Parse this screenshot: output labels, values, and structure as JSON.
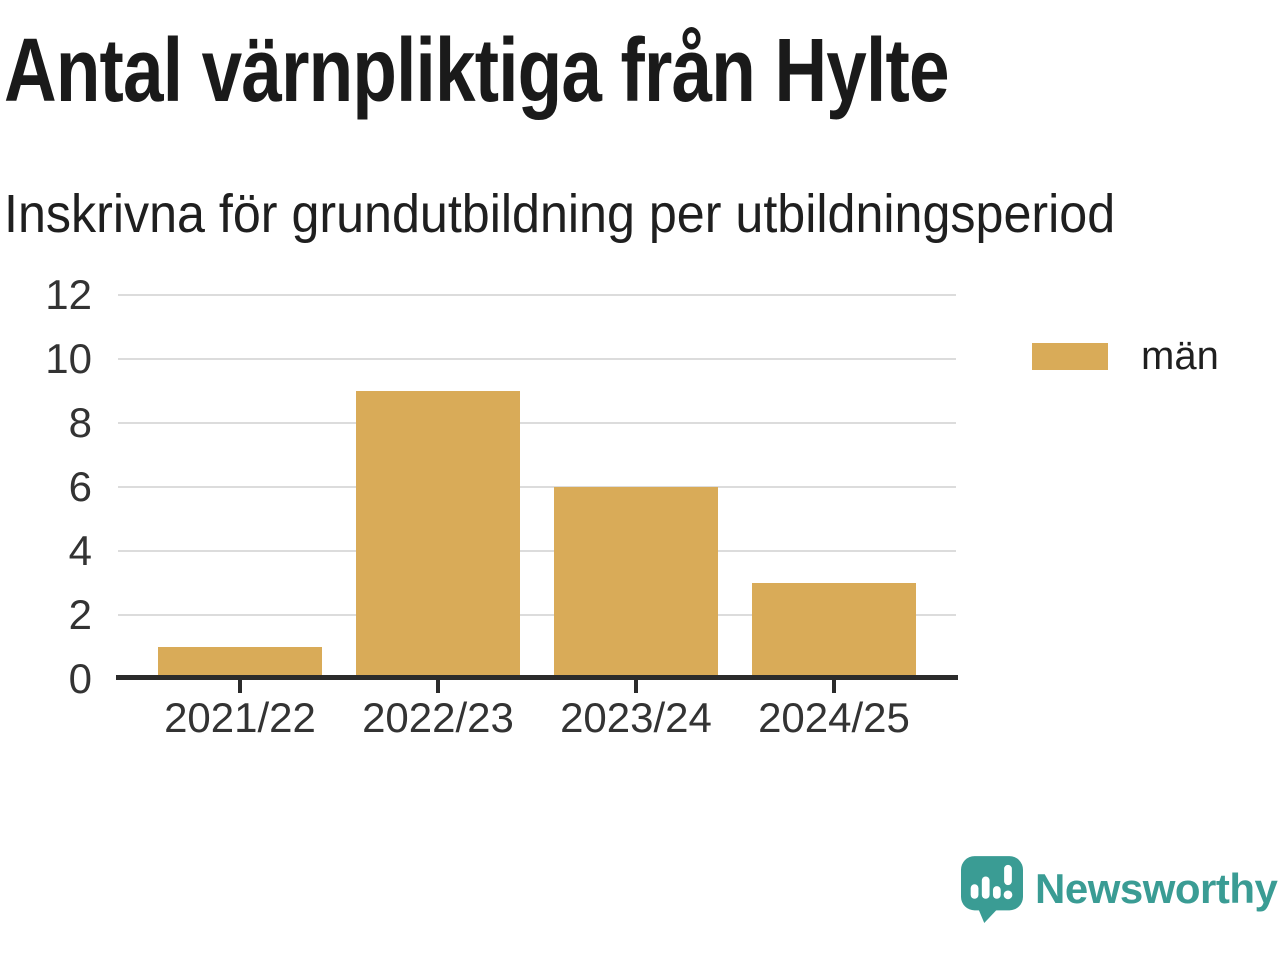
{
  "header": {
    "title": "Antal värnpliktiga från Hylte",
    "subtitle": "Inskrivna för grundutbildning per utbildningsperiod"
  },
  "chart_data": {
    "type": "bar",
    "categories": [
      "2021/22",
      "2022/23",
      "2023/24",
      "2024/25"
    ],
    "series": [
      {
        "name": "män",
        "values": [
          1,
          9,
          6,
          3
        ],
        "color": "#D9AB58"
      }
    ],
    "title": "Antal värnpliktiga från Hylte",
    "subtitle": "Inskrivna för grundutbildning per utbildningsperiod",
    "xlabel": "",
    "ylabel": "",
    "ylim": [
      0,
      12
    ],
    "yticks": [
      0,
      2,
      4,
      6,
      8,
      10,
      12
    ],
    "grid": true,
    "legend_position": "right"
  },
  "legend": {
    "items": [
      {
        "label": "män",
        "color": "#D9AB58"
      }
    ]
  },
  "footer": {
    "brand": "Newsworthy",
    "brand_color": "#3A9C94",
    "icon": "bar-chart-speech-bubble-icon"
  },
  "colors": {
    "bar": "#D9AB58",
    "axis": "#2b2b2b",
    "gridline": "#dcdcdc",
    "title_text": "#1a1a1a",
    "tick_text": "#333333",
    "brand": "#3A9C94"
  }
}
